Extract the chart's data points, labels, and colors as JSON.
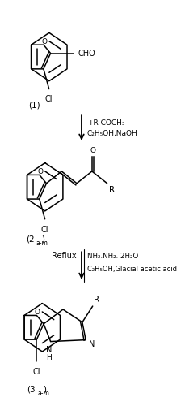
{
  "background_color": "#ffffff",
  "figsize": [
    2.3,
    5.0
  ],
  "dpi": 100,
  "arrow1_reagents_line1": "+R-COCH₃",
  "arrow1_reagents_line2": "C₂H₅OH,NaOH",
  "arrow2_left_label": "Reflux",
  "arrow2_reagents_line1": "NH₂.NH₂. 2H₂O",
  "arrow2_reagents_line2": "C₂H₅OH,Glacial acetic acid",
  "compound1_label": "(1)",
  "compound2_label": "(2",
  "compound2_subscript": "a-m",
  "compound2_label2": ")",
  "compound3_label": "(3",
  "compound3_subscript": "a-m",
  "compound3_label2": ")"
}
